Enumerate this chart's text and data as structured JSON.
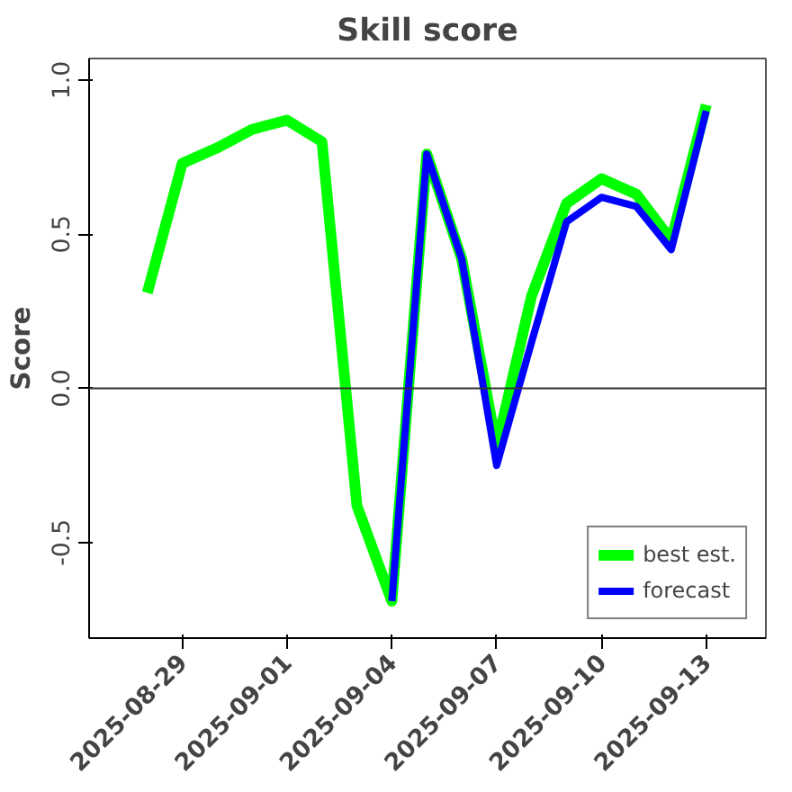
{
  "chart_data": {
    "type": "line",
    "title": "Skill score",
    "ylabel": "Score",
    "x": [
      "2025-08-28",
      "2025-08-29",
      "2025-08-30",
      "2025-08-31",
      "2025-09-01",
      "2025-09-02",
      "2025-09-03",
      "2025-09-04",
      "2025-09-05",
      "2025-09-06",
      "2025-09-07",
      "2025-09-08",
      "2025-09-09",
      "2025-09-10",
      "2025-09-11",
      "2025-09-12",
      "2025-09-13"
    ],
    "series": [
      {
        "name": "best est.",
        "color": "#00ff00",
        "values": [
          0.31,
          0.73,
          0.78,
          0.84,
          0.87,
          0.8,
          -0.38,
          -0.69,
          0.76,
          0.42,
          -0.19,
          0.3,
          0.6,
          0.68,
          0.63,
          0.48,
          0.92
        ]
      },
      {
        "name": "forecast",
        "color": "#0000ff",
        "values": [
          null,
          null,
          null,
          null,
          null,
          null,
          null,
          -0.69,
          0.76,
          0.42,
          -0.25,
          0.15,
          0.54,
          0.62,
          0.59,
          0.45,
          0.9
        ]
      }
    ],
    "xlim": [
      "2025-08-26T08:00",
      "2025-09-14T17:00"
    ],
    "xticks": [
      {
        "value": "2025-08-29",
        "label": "2025-08-29"
      },
      {
        "value": "2025-09-01",
        "label": "2025-09-01"
      },
      {
        "value": "2025-09-04",
        "label": "2025-09-04"
      },
      {
        "value": "2025-09-07",
        "label": "2025-09-07"
      },
      {
        "value": "2025-09-10",
        "label": "2025-09-10"
      },
      {
        "value": "2025-09-13",
        "label": "2025-09-13"
      }
    ],
    "ylim": [
      -0.81,
      1.07
    ],
    "yticks": [
      {
        "value": -0.5,
        "label": "-0.5"
      },
      {
        "value": 0,
        "label": "0.0"
      },
      {
        "value": 0.5,
        "label": "0.5"
      },
      {
        "value": 1,
        "label": "1.0"
      }
    ],
    "ref_lines": [
      {
        "axis": "y",
        "value": 0,
        "color": "#333333"
      }
    ],
    "grid": false,
    "legend": "bottom right",
    "marker": "none",
    "line_style": "solid"
  }
}
